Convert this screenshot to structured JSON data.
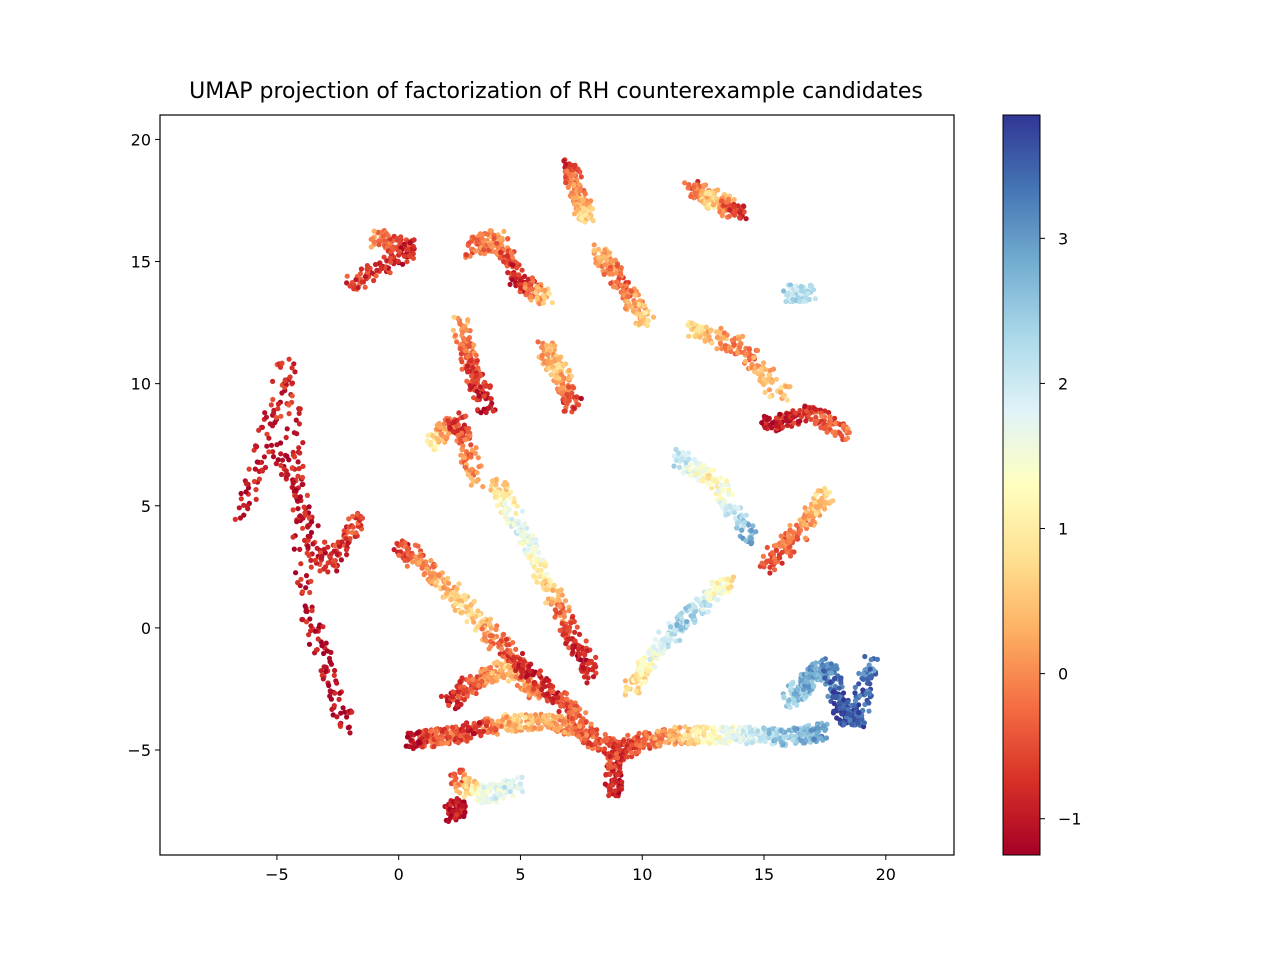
{
  "chart_data": {
    "type": "scatter",
    "title": "UMAP projection of factorization of RH counterexample candidates",
    "xlabel": "",
    "ylabel": "",
    "xlim": [
      -9.8,
      22.8
    ],
    "ylim": [
      -9.3,
      21.0
    ],
    "xticks": [
      -5,
      0,
      5,
      10,
      15,
      20
    ],
    "xtick_labels": [
      "−5",
      "0",
      "5",
      "10",
      "15",
      "20"
    ],
    "yticks": [
      -5,
      0,
      5,
      10,
      15,
      20
    ],
    "ytick_labels": [
      "−5",
      "0",
      "5",
      "10",
      "15",
      "20"
    ],
    "grid": false,
    "colormap": "RdYlBu",
    "color_range": [
      -1.25,
      3.85
    ],
    "colorbar_ticks": [
      -1,
      0,
      1,
      2,
      3
    ],
    "colorbar_tick_labels": [
      "−1",
      "0",
      "1",
      "2",
      "3"
    ],
    "clusters": [
      {
        "x": [
          8.8,
          8.9,
          7.5,
          6.0,
          4.5,
          3.0,
          1.5,
          0.5
        ],
        "y": [
          -6.8,
          -5.0,
          -4.2,
          -3.8,
          -3.9,
          -4.2,
          -4.5,
          -4.6
        ],
        "c": [
          -1.0,
          -0.6,
          -0.3,
          0.2,
          0.6,
          -0.8,
          -0.2,
          -1.1
        ]
      },
      {
        "x": [
          8.8,
          10.0,
          11.5,
          13.0,
          14.5,
          16.0,
          17.5
        ],
        "y": [
          -5.2,
          -4.6,
          -4.4,
          -4.4,
          -4.4,
          -4.5,
          -4.2
        ],
        "c": [
          -0.8,
          -0.4,
          0.3,
          1.2,
          2.0,
          2.6,
          2.9
        ]
      },
      {
        "x": [
          16.0,
          16.8,
          17.6,
          18.2,
          18.8,
          19.4
        ],
        "y": [
          -3.0,
          -2.2,
          -1.5,
          -3.5,
          -3.8,
          -1.3
        ],
        "c": [
          2.4,
          2.7,
          3.0,
          3.8,
          3.6,
          3.2
        ]
      },
      {
        "x": [
          2.0,
          3.2,
          4.5,
          5.8
        ],
        "y": [
          -3.0,
          -2.2,
          -1.6,
          -2.8
        ],
        "c": [
          -0.9,
          -0.4,
          0.5,
          -0.2
        ]
      },
      {
        "x": [
          0.0,
          1.5,
          3.0,
          4.5,
          6.0,
          7.5
        ],
        "y": [
          3.4,
          2.2,
          0.6,
          -1.0,
          -2.4,
          -3.8
        ],
        "c": [
          -0.7,
          0.1,
          0.8,
          -0.5,
          -0.9,
          -0.3
        ]
      },
      {
        "x": [
          4.0,
          5.0,
          6.0,
          7.0,
          8.0
        ],
        "y": [
          6.0,
          4.0,
          2.0,
          0.0,
          -2.0
        ],
        "c": [
          0.4,
          2.0,
          1.0,
          -0.6,
          -1.0
        ]
      },
      {
        "x": [
          2.3,
          3.4,
          5.0
        ],
        "y": [
          -6.0,
          -6.9,
          -6.4
        ],
        "c": [
          -0.6,
          1.5,
          2.0
        ]
      },
      {
        "x": [
          2.2,
          2.6
        ],
        "y": [
          -7.6,
          -7.3
        ],
        "c": [
          -1.1,
          -1.0
        ]
      },
      {
        "x": [
          1.3,
          2.4,
          3.2
        ],
        "y": [
          7.5,
          8.5,
          6.0
        ],
        "c": [
          1.2,
          -0.8,
          0.3
        ]
      },
      {
        "x": [
          2.5,
          3.0,
          3.7
        ],
        "y": [
          12.5,
          10.5,
          9.0
        ],
        "c": [
          0.3,
          -0.6,
          -1.0
        ]
      },
      {
        "x": [
          6.0,
          6.6,
          7.2
        ],
        "y": [
          11.5,
          10.5,
          9.0
        ],
        "c": [
          0.0,
          0.7,
          -0.9
        ]
      },
      {
        "x": [
          8.2,
          9.2,
          10.2
        ],
        "y": [
          15.5,
          14.0,
          12.5
        ],
        "c": [
          0.4,
          -0.4,
          0.8
        ]
      },
      {
        "x": [
          12.0,
          13.0,
          14.0
        ],
        "y": [
          18.0,
          17.5,
          17.0
        ],
        "c": [
          -0.6,
          0.8,
          -0.9
        ]
      },
      {
        "x": [
          7.0,
          7.4,
          7.8
        ],
        "y": [
          19.0,
          17.5,
          16.8
        ],
        "c": [
          -0.8,
          0.2,
          0.7
        ]
      },
      {
        "x": [
          11.5,
          13.0,
          14.5
        ],
        "y": [
          7.0,
          6.0,
          3.5
        ],
        "c": [
          2.2,
          1.0,
          3.0
        ]
      },
      {
        "x": [
          12.0,
          14.0,
          15.8
        ],
        "y": [
          12.3,
          11.5,
          9.5
        ],
        "c": [
          1.0,
          -0.2,
          0.6
        ]
      },
      {
        "x": [
          15.0,
          16.8,
          18.5
        ],
        "y": [
          8.3,
          8.8,
          8.0
        ],
        "c": [
          -1.0,
          -0.7,
          -0.2
        ]
      },
      {
        "x": [
          15.0,
          16.5,
          17.6
        ],
        "y": [
          2.5,
          4.0,
          5.5
        ],
        "c": [
          -0.5,
          -0.1,
          0.8
        ]
      },
      {
        "x": [
          -5.0,
          -3.0,
          -1.5
        ],
        "y": [
          7.5,
          2.5,
          4.5
        ],
        "c": [
          -1.1,
          -0.8,
          -0.5
        ]
      },
      {
        "x": [
          -1.0,
          0.5,
          -2.0
        ],
        "y": [
          16.0,
          15.5,
          14.0
        ],
        "c": [
          0.2,
          -0.9,
          -0.6
        ]
      },
      {
        "x": [
          3.0,
          4.0,
          5.0,
          6.0
        ],
        "y": [
          15.5,
          16.0,
          14.2,
          13.5
        ],
        "c": [
          -0.4,
          0.1,
          -1.0,
          0.6
        ]
      },
      {
        "x": [
          -6.5,
          -4.5,
          -3.8,
          -2.0
        ],
        "y": [
          4.5,
          11.0,
          0.8,
          -4.3
        ],
        "c": [
          -1.1,
          -0.7,
          -1.0,
          -1.1
        ]
      },
      {
        "x": [
          16.0,
          16.8
        ],
        "y": [
          13.7,
          13.7
        ],
        "c": [
          2.3,
          2.1
        ]
      },
      {
        "x": [
          9.5,
          10.5,
          12.0,
          13.5
        ],
        "y": [
          -2.5,
          -1.0,
          0.5,
          2.0
        ],
        "c": [
          0.5,
          1.6,
          2.6,
          0.9
        ]
      }
    ]
  }
}
